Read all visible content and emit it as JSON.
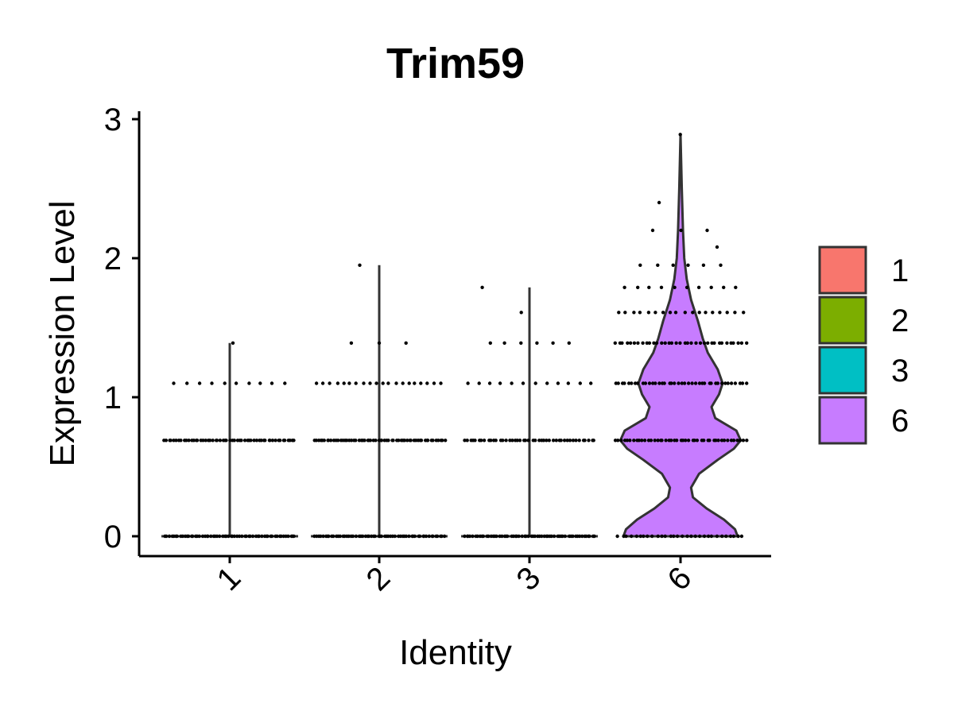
{
  "chart_data": {
    "type": "violin",
    "title": "Trim59",
    "xlabel": "Identity",
    "ylabel": "Expression Level",
    "categories": [
      "1",
      "2",
      "3",
      "6"
    ],
    "ylim": [
      -0.15,
      3.05
    ],
    "yticks": [
      "0",
      "1",
      "2",
      "3"
    ],
    "grid": false,
    "legend_position": "right",
    "legend": [
      {
        "label": "1",
        "color": "#F8766D"
      },
      {
        "label": "2",
        "color": "#7CAE00"
      },
      {
        "label": "3",
        "color": "#00BFC4"
      },
      {
        "label": "6",
        "color": "#C77CFF"
      }
    ],
    "series": [
      {
        "name": "1",
        "color": "#F8766D",
        "max": 1.39,
        "levels": [
          {
            "y": 0.0,
            "n": 60
          },
          {
            "y": 0.69,
            "n": 55
          },
          {
            "y": 1.1,
            "n": 10
          },
          {
            "y": 1.39,
            "n": 1
          }
        ]
      },
      {
        "name": "2",
        "color": "#7CAE00",
        "max": 1.95,
        "levels": [
          {
            "y": 0.0,
            "n": 60
          },
          {
            "y": 0.69,
            "n": 60
          },
          {
            "y": 1.1,
            "n": 20
          },
          {
            "y": 1.39,
            "n": 3
          },
          {
            "y": 1.95,
            "n": 1
          }
        ]
      },
      {
        "name": "3",
        "color": "#00BFC4",
        "max": 1.79,
        "levels": [
          {
            "y": 0.0,
            "n": 60
          },
          {
            "y": 0.69,
            "n": 45
          },
          {
            "y": 1.1,
            "n": 12
          },
          {
            "y": 1.39,
            "n": 6
          },
          {
            "y": 1.61,
            "n": 1
          },
          {
            "y": 1.79,
            "n": 1
          }
        ]
      },
      {
        "name": "6",
        "color": "#C77CFF",
        "max": 2.89,
        "levels": [
          {
            "y": 0.0,
            "n": 30
          },
          {
            "y": 0.69,
            "n": 45
          },
          {
            "y": 1.1,
            "n": 40
          },
          {
            "y": 1.39,
            "n": 35
          },
          {
            "y": 1.61,
            "n": 18
          },
          {
            "y": 1.79,
            "n": 10
          },
          {
            "y": 1.95,
            "n": 6
          },
          {
            "y": 2.08,
            "n": 1
          },
          {
            "y": 2.2,
            "n": 3
          },
          {
            "y": 2.4,
            "n": 1
          },
          {
            "y": 2.89,
            "n": 1
          }
        ],
        "density": [
          [
            0.0,
            0.92
          ],
          [
            0.05,
            0.88
          ],
          [
            0.12,
            0.7
          ],
          [
            0.2,
            0.42
          ],
          [
            0.28,
            0.2
          ],
          [
            0.35,
            0.17
          ],
          [
            0.45,
            0.3
          ],
          [
            0.55,
            0.6
          ],
          [
            0.63,
            0.86
          ],
          [
            0.69,
            0.97
          ],
          [
            0.76,
            0.9
          ],
          [
            0.85,
            0.56
          ],
          [
            0.93,
            0.5
          ],
          [
            1.02,
            0.62
          ],
          [
            1.1,
            0.68
          ],
          [
            1.2,
            0.6
          ],
          [
            1.32,
            0.44
          ],
          [
            1.42,
            0.36
          ],
          [
            1.55,
            0.28
          ],
          [
            1.7,
            0.17
          ],
          [
            1.85,
            0.1
          ],
          [
            2.0,
            0.06
          ],
          [
            2.2,
            0.04
          ],
          [
            2.5,
            0.02
          ],
          [
            2.89,
            0.0
          ]
        ]
      }
    ]
  }
}
